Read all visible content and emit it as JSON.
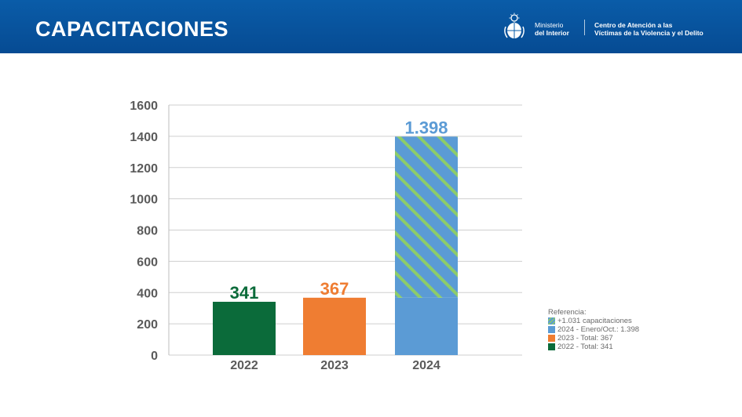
{
  "header": {
    "title": "CAPACITACIONES",
    "ministry_line1": "Ministerio",
    "ministry_line2": "del Interior",
    "center_line1": "Centro de Atención a las",
    "center_line2": "Víctimas de la Violencia y el Delito",
    "background_color": "#0a5ca8"
  },
  "chart_data": {
    "type": "bar",
    "title": "",
    "xlabel": "",
    "ylabel": "",
    "categories": [
      "2022",
      "2023",
      "2024"
    ],
    "values": [
      341,
      367,
      1398
    ],
    "value_labels": [
      "341",
      "367",
      "1.398"
    ],
    "value_label_colors": [
      "#0b6b3a",
      "#ef7d32",
      "#5b9bd5"
    ],
    "bar_colors": [
      "#0b6b3a",
      "#ef7d32",
      "#5b9bd5"
    ],
    "segments_2024": {
      "base": 367,
      "additional": 1031,
      "base_color": "#5b9bd5",
      "hatch_color": "#8ccc6a"
    },
    "ylim": [
      0,
      1600
    ],
    "yticks": [
      0,
      200,
      400,
      600,
      800,
      1000,
      1200,
      1400,
      1600
    ],
    "ytick_labels": [
      "0",
      "200",
      "400",
      "600",
      "800",
      "1000",
      "1200",
      "1400",
      "1600"
    ],
    "grid": true,
    "legend_position": "bottom-right",
    "legend": {
      "title": "Referencia:",
      "items": [
        {
          "label": "+1.031 capacitaciones",
          "color": "#5b9bd5",
          "hatched": true
        },
        {
          "label": "2024 - Enero/Oct.: 1.398",
          "color": "#5b9bd5",
          "hatched": false
        },
        {
          "label": "2023 - Total: 367",
          "color": "#ef7d32",
          "hatched": false
        },
        {
          "label": "2022 - Total: 341",
          "color": "#0b6b3a",
          "hatched": false
        }
      ]
    }
  }
}
